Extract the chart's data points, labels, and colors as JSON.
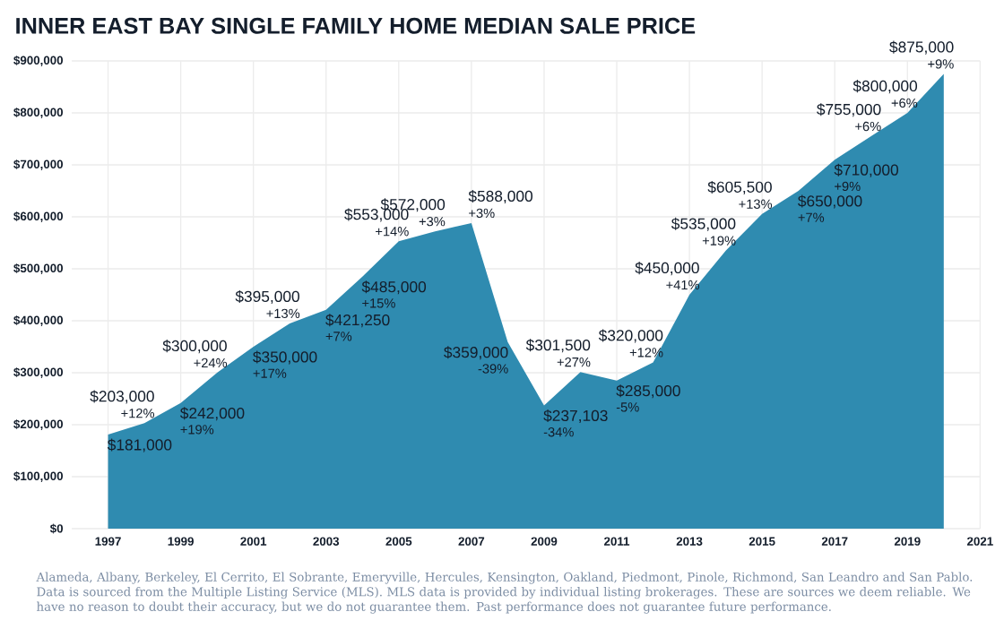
{
  "chart_data": {
    "type": "area",
    "title": "INNER EAST BAY SINGLE FAMILY HOME MEDIAN SALE PRICE",
    "x": [
      1997,
      1998,
      1999,
      2000,
      2001,
      2002,
      2003,
      2004,
      2005,
      2006,
      2007,
      2008,
      2009,
      2010,
      2011,
      2012,
      2013,
      2014,
      2015,
      2016,
      2017,
      2018,
      2019,
      2020
    ],
    "values": [
      181000,
      203000,
      242000,
      300000,
      350000,
      395000,
      421250,
      485000,
      553000,
      572000,
      588000,
      359000,
      237103,
      301500,
      285000,
      320000,
      450000,
      535000,
      605500,
      650000,
      710000,
      755000,
      800000,
      875000
    ],
    "value_labels": [
      "$181,000",
      "$203,000",
      "$242,000",
      "$300,000",
      "$350,000",
      "$395,000",
      "$421,250",
      "$485,000",
      "$553,000",
      "$572,000",
      "$588,000",
      "$359,000",
      "$237,103",
      "$301,500",
      "$285,000",
      "$320,000",
      "$450,000",
      "$535,000",
      "$605,500",
      "$650,000",
      "$710,000",
      "$755,000",
      "$800,000",
      "$875,000"
    ],
    "color": "#2f8bb0",
    "xlim": [
      1996,
      2021
    ],
    "xticks": [
      1997,
      1999,
      2001,
      2003,
      2005,
      2007,
      2009,
      2011,
      2013,
      2015,
      2017,
      2019,
      2021
    ],
    "ylim": [
      0,
      900000
    ],
    "yticks": [
      {
        "value": 0,
        "label": "$0"
      },
      {
        "value": 100000,
        "label": "$100,000"
      },
      {
        "value": 200000,
        "label": "$200,000"
      },
      {
        "value": 300000,
        "label": "$300,000"
      },
      {
        "value": 400000,
        "label": "$400,000"
      },
      {
        "value": 500000,
        "label": "$500,000"
      },
      {
        "value": 600000,
        "label": "$600,000"
      },
      {
        "value": 700000,
        "label": "$700,000"
      },
      {
        "value": 800000,
        "label": "$800,000"
      },
      {
        "value": 900000,
        "label": "$900,000"
      }
    ],
    "grid": true,
    "annotations": [
      {
        "text": "+12%",
        "x": 1998,
        "y": 203000
      },
      {
        "text": "+19%",
        "x": 1999,
        "y": 242000
      },
      {
        "text": "+24%",
        "x": 2000,
        "y": 300000
      },
      {
        "text": "+17%",
        "x": 2001,
        "y": 350000
      },
      {
        "text": "+13%",
        "x": 2002,
        "y": 395000
      },
      {
        "text": "+7%",
        "x": 2003,
        "y": 421250
      },
      {
        "text": "+15%",
        "x": 2004,
        "y": 485000
      },
      {
        "text": "+14%",
        "x": 2005,
        "y": 553000
      },
      {
        "text": "+3%",
        "x": 2006,
        "y": 572000
      },
      {
        "text": "+3%",
        "x": 2007,
        "y": 588000
      },
      {
        "text": "-39%",
        "x": 2008,
        "y": 359000
      },
      {
        "text": "-34%",
        "x": 2009,
        "y": 237103
      },
      {
        "text": "+27%",
        "x": 2010,
        "y": 301500
      },
      {
        "text": "-5%",
        "x": 2011,
        "y": 285000
      },
      {
        "text": "+12%",
        "x": 2012,
        "y": 320000
      },
      {
        "text": "+41%",
        "x": 2013,
        "y": 450000
      },
      {
        "text": "+19%",
        "x": 2014,
        "y": 535000
      },
      {
        "text": "+13%",
        "x": 2015,
        "y": 605500
      },
      {
        "text": "+7%",
        "x": 2016,
        "y": 650000
      },
      {
        "text": "+9%",
        "x": 2017,
        "y": 710000
      },
      {
        "text": "+6%",
        "x": 2018,
        "y": 755000
      },
      {
        "text": "+6%",
        "x": 2019,
        "y": 800000
      },
      {
        "text": "+9%",
        "x": 2020,
        "y": 875000
      },
      "Alameda, Albany, Berkeley, El Cerrito, El Sobrante, Emeryville, Hercules, Kensington, Oakland, Piedmont, Pinole, Richmond, San Leandro and San Pablo. Data is sourced from the Multiple Listing Service (MLS). MLS data is provided by individual listing brokerages. These are sources we deem reliable. We have no reason to doubt their accuracy, but we do not guarantee them. Past performance does not guarantee future performance."
    ]
  }
}
